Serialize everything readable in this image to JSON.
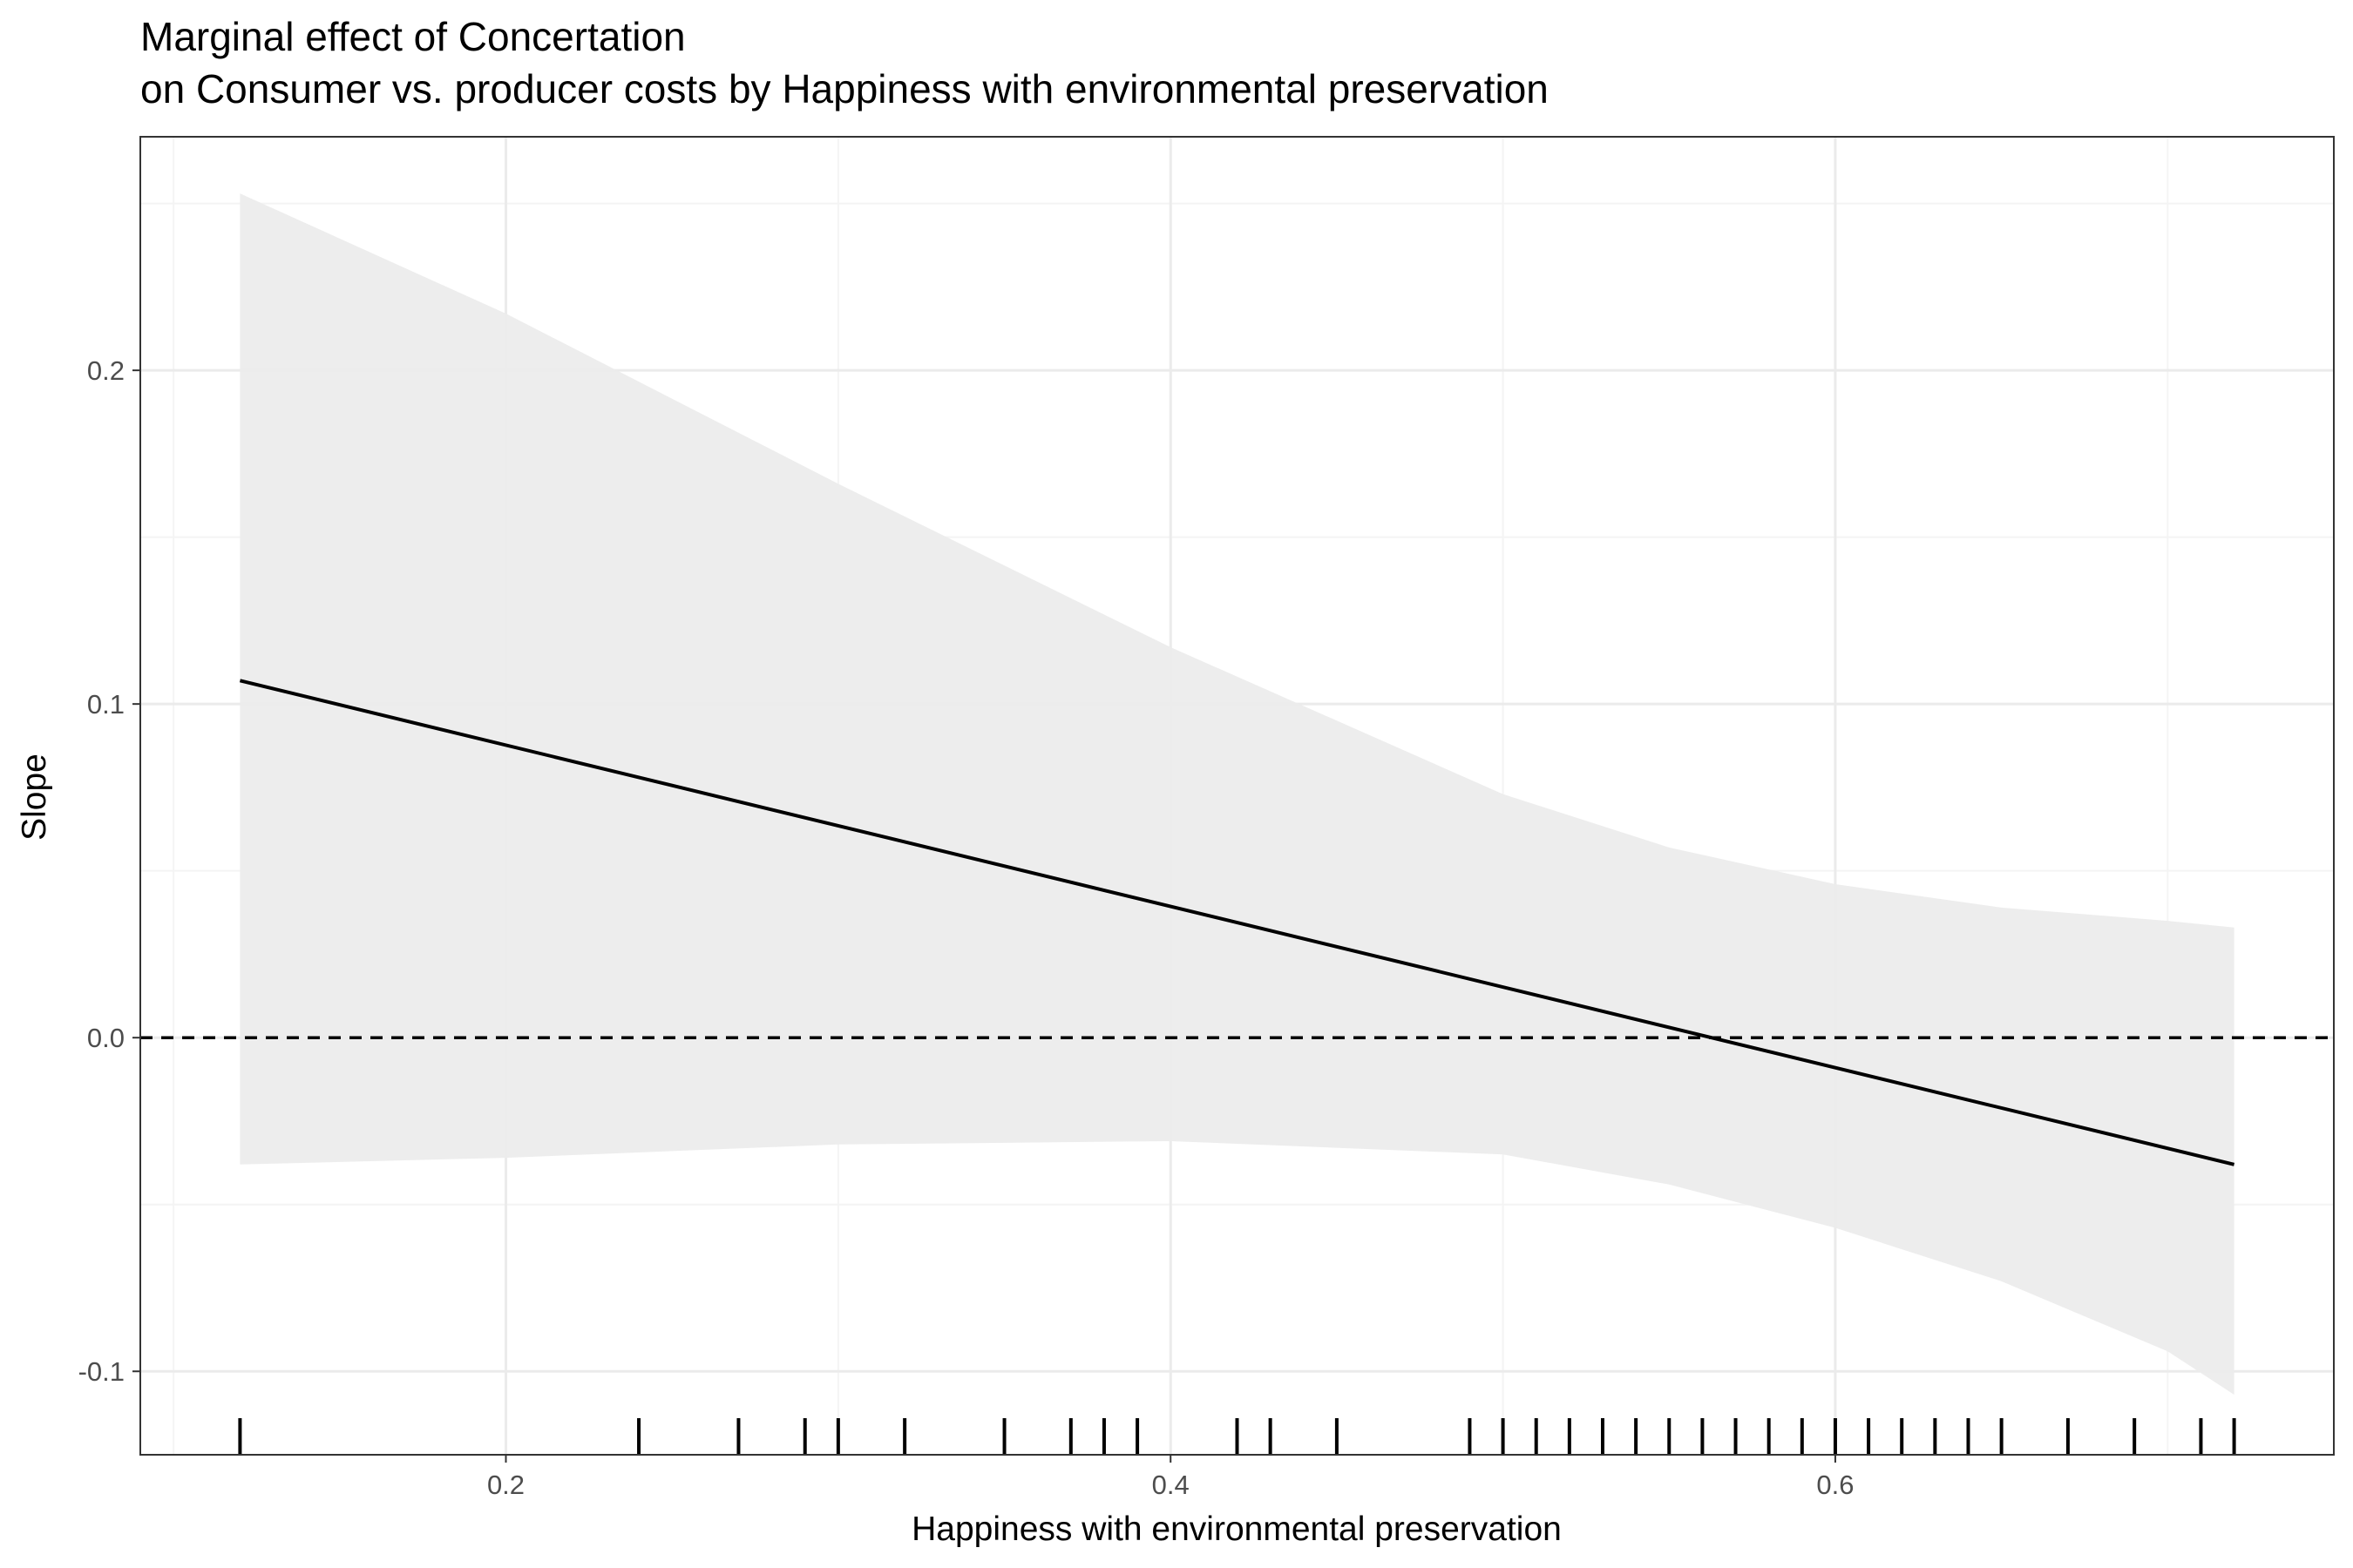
{
  "chart_data": {
    "type": "line",
    "title": "Marginal effect of Concertation",
    "subtitle": "on Consumer vs. producer costs by Happiness with environmental preservation",
    "xlabel": "Happiness with environmental preservation",
    "ylabel": "Slope",
    "xlim": [
      0.09,
      0.75
    ],
    "ylim": [
      -0.125,
      0.27
    ],
    "x_ticks": [
      0.2,
      0.4,
      0.6
    ],
    "x_tick_labels": [
      "0.2",
      "0.4",
      "0.6"
    ],
    "y_ticks": [
      -0.1,
      0.0,
      0.1,
      0.2
    ],
    "y_tick_labels": [
      "-0.1",
      "0.0",
      "0.1",
      "0.2"
    ],
    "grid": true,
    "series": [
      {
        "role": "estimate",
        "x": [
          0.12,
          0.72
        ],
        "y": [
          0.107,
          -0.038
        ]
      }
    ],
    "confidence_band": {
      "x": [
        0.12,
        0.2,
        0.3,
        0.4,
        0.5,
        0.55,
        0.6,
        0.65,
        0.7,
        0.72
      ],
      "upper": [
        0.253,
        0.217,
        0.166,
        0.117,
        0.073,
        0.057,
        0.046,
        0.039,
        0.035,
        0.033
      ],
      "lower": [
        -0.038,
        -0.036,
        -0.032,
        -0.031,
        -0.035,
        -0.044,
        -0.057,
        -0.073,
        -0.094,
        -0.107
      ]
    },
    "reference_line": {
      "y": 0.0,
      "style": "dashed"
    },
    "rug": [
      0.12,
      0.24,
      0.27,
      0.29,
      0.3,
      0.32,
      0.35,
      0.37,
      0.38,
      0.39,
      0.42,
      0.43,
      0.45,
      0.49,
      0.5,
      0.51,
      0.52,
      0.53,
      0.54,
      0.55,
      0.56,
      0.57,
      0.58,
      0.59,
      0.6,
      0.61,
      0.62,
      0.63,
      0.64,
      0.65,
      0.67,
      0.69,
      0.71,
      0.72
    ],
    "colors": {
      "band": "#ebebeb",
      "line": "#000000",
      "grid_major": "#ebebeb",
      "grid_minor": "#f4f4f4",
      "panel_border": "#333333"
    }
  }
}
